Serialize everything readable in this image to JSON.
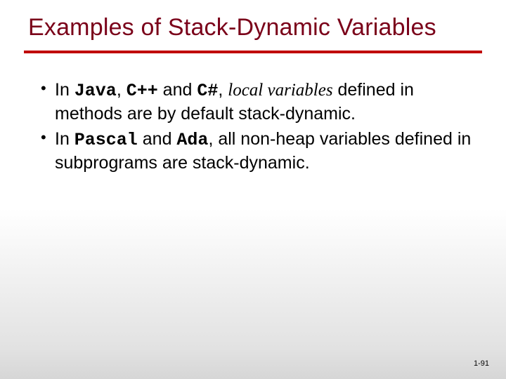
{
  "slide": {
    "title": "Examples of Stack-Dynamic Variables",
    "title_color": "#7a0019",
    "divider_color": "#c00000",
    "background_gradient_top": "#ffffff",
    "background_gradient_bottom": "#d6d6d6",
    "title_fontsize": 34,
    "body_fontsize": 25,
    "body_color": "#000000"
  },
  "bullets": {
    "b1": {
      "pre": "In ",
      "lang1": "Java",
      "sep1": ", ",
      "lang2": "C++",
      "mid1": "  and ",
      "lang3": "C#",
      "sep2": ", ",
      "italic": "local variables",
      "post": " defined in methods are by default stack-dynamic."
    },
    "b2": {
      "pre": "In ",
      "lang1": "Pascal",
      "mid1": " and ",
      "lang2": "Ada",
      "post": ", all non-heap variables defined in subprograms are stack-dynamic."
    }
  },
  "footer": {
    "pagenum": "1-91",
    "pagenum_fontsize": 11
  }
}
